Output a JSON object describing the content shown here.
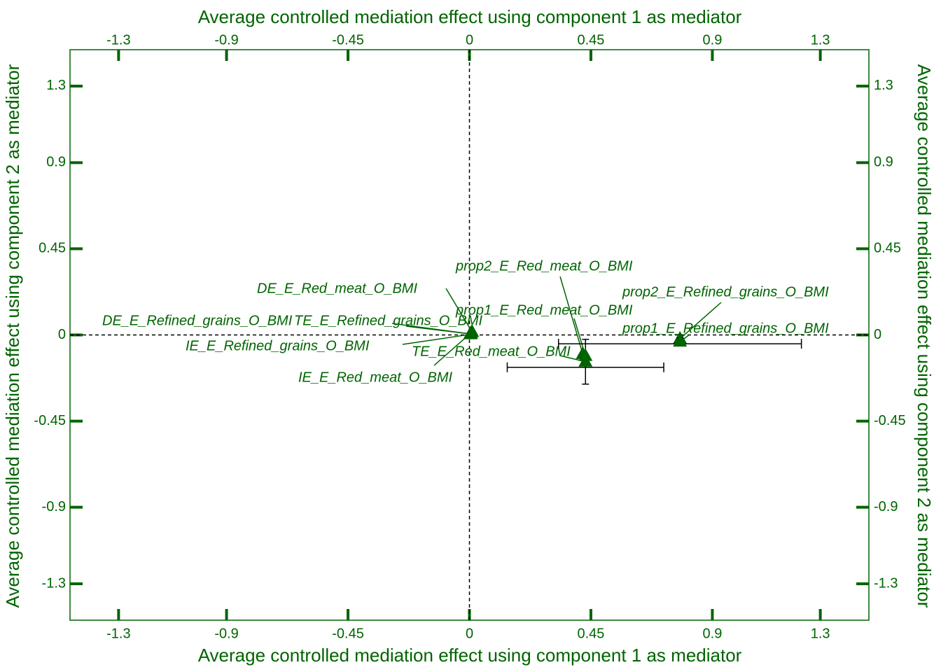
{
  "chart_data": {
    "type": "scatter",
    "x_label": "Average controlled mediation effect using component 1 as mediator",
    "y_label": "Average controlled mediation effect using component 2 as mediator",
    "color": "#006400",
    "marker": "triangle",
    "xlim": [
      -1.48,
      1.48
    ],
    "ylim": [
      -1.49,
      1.49
    ],
    "xticks": [
      -1.3,
      -0.9,
      -0.45,
      0,
      0.45,
      0.9,
      1.3
    ],
    "yticks": [
      -1.3,
      -0.9,
      -0.45,
      0,
      0.45,
      0.9,
      1.3
    ],
    "points": [
      {
        "label": "DE_E_Red_meat_O_BMI",
        "x": 0.01,
        "y": 0.015
      },
      {
        "label": "DE_E_Refined_grains_O_BMI",
        "x": 0.005,
        "y": 0.005
      },
      {
        "label": "TE_E_Refined_grains_O_BMI",
        "x": 0.005,
        "y": 0.005
      },
      {
        "label": "IE_E_Refined_grains_O_BMI",
        "x": 0.003,
        "y": 0.003
      },
      {
        "label": "IE_E_Red_meat_O_BMI",
        "x": 0.005,
        "y": 0.01
      },
      {
        "label": "TE_E_Red_meat_O_BMI",
        "x": 0.43,
        "y": -0.14,
        "x_err": 0.29,
        "y_err": 0.117
      },
      {
        "label": "prop1_E_Red_meat_O_BMI",
        "x": 0.43,
        "y": -0.11
      },
      {
        "label": "prop2_E_Red_meat_O_BMI",
        "x": 0.42,
        "y": -0.1
      },
      {
        "label": "prop2_E_Refined_grains_O_BMI",
        "x": 0.78,
        "y": -0.02
      },
      {
        "label": "prop1_E_Refined_grains_O_BMI",
        "x": 0.78,
        "y": -0.035,
        "x_err": 0.45,
        "y_err": 0.02
      }
    ]
  }
}
